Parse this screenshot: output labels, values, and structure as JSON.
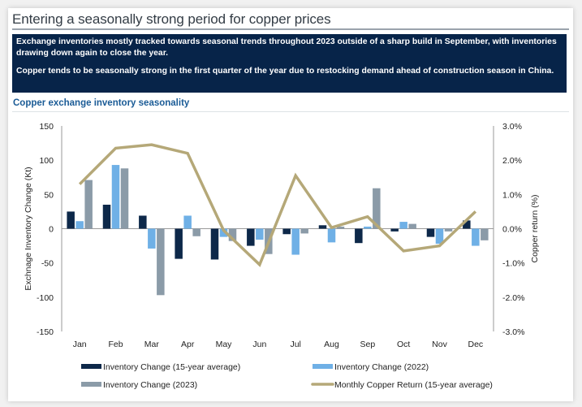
{
  "header": {
    "title": "Entering a seasonally strong period for copper prices",
    "note_paragraphs": [
      "Exchange inventories mostly tracked towards seasonal trends throughout 2023 outside of a sharp build in September, with inventories drawing down again to close the year.",
      "Copper tends to be seasonally strong in the first quarter of the year due to restocking demand ahead of construction season in China."
    ],
    "subtitle": "Copper exchange inventory seasonality"
  },
  "colors": {
    "avg15": "#0d2849",
    "y2022": "#6fb0e6",
    "y2023": "#8b9ba8",
    "copper_line": "#b5a878",
    "axis": "#9a9a9a",
    "note_bg": "#072449",
    "subtitle": "#1a5b96"
  },
  "chart_data": {
    "type": "bar",
    "title": "Copper exchange inventory seasonality",
    "categories": [
      "Jan",
      "Feb",
      "Mar",
      "Apr",
      "May",
      "Jun",
      "Jul",
      "Aug",
      "Sep",
      "Oct",
      "Nov",
      "Dec"
    ],
    "series": [
      {
        "name": "Inventory Change (15-year average)",
        "type": "bar",
        "axis": "left",
        "color_key": "avg15",
        "values": [
          25,
          35,
          19,
          -44,
          -45,
          -25,
          -8,
          5,
          -21,
          -4,
          -12,
          12
        ]
      },
      {
        "name": "Inventory Change (2022)",
        "type": "bar",
        "axis": "left",
        "color_key": "y2022",
        "values": [
          11,
          93,
          -29,
          19,
          -12,
          -16,
          -38,
          -20,
          3,
          10,
          -22,
          -25
        ]
      },
      {
        "name": "Inventory Change (2023)",
        "type": "bar",
        "axis": "left",
        "color_key": "y2023",
        "values": [
          71,
          88,
          -97,
          -11,
          -18,
          -37,
          -7,
          3,
          59,
          7,
          -4,
          -17
        ]
      },
      {
        "name": "Monthly Copper Return (15-year average)",
        "type": "line",
        "axis": "right",
        "color_key": "copper_line",
        "values": [
          1.3,
          2.35,
          2.45,
          2.2,
          -0.05,
          -1.05,
          1.55,
          0.03,
          0.35,
          -0.65,
          -0.5,
          0.5
        ]
      }
    ],
    "ylabel": "Exchnage Inventory Change (Kt)",
    "ylim": [
      -150,
      150
    ],
    "yticks": [
      150,
      100,
      50,
      0,
      -50,
      -100,
      -150
    ],
    "y2label": "Copper return (%)",
    "y2lim": [
      -3.0,
      3.0
    ],
    "y2ticks": [
      "3.0%",
      "2.0%",
      "1.0%",
      "0.0%",
      "-1.0%",
      "-2.0%",
      "-3.0%"
    ],
    "grid": false,
    "legend_position": "bottom"
  }
}
